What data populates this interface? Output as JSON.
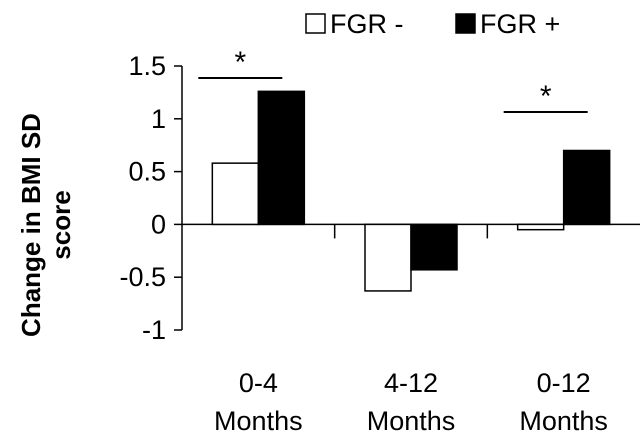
{
  "chart_data": {
    "type": "bar",
    "categories": [
      [
        "0-4",
        "Months"
      ],
      [
        "4-12",
        "Months"
      ],
      [
        "0-12",
        "Months"
      ]
    ],
    "series": [
      {
        "name": "FGR -",
        "values": [
          0.58,
          -0.63,
          -0.05
        ],
        "color": "#ffffff"
      },
      {
        "name": "FGR +",
        "values": [
          1.26,
          -0.43,
          0.7
        ],
        "color": "#000000"
      }
    ],
    "ylabel": [
      "Change in BMI SD",
      "score"
    ],
    "ylim": [
      -1,
      1.5
    ],
    "yticks": [
      "1.5",
      "1",
      "0.5",
      "0",
      "-0.5",
      "-1"
    ],
    "ytick_values": [
      1.5,
      1,
      0.5,
      0,
      -0.5,
      -1
    ],
    "significance": [
      {
        "category_index": 0,
        "mark": "*"
      },
      {
        "category_index": 2,
        "mark": "*"
      }
    ],
    "legend_position": "top-right",
    "grid": false
  }
}
